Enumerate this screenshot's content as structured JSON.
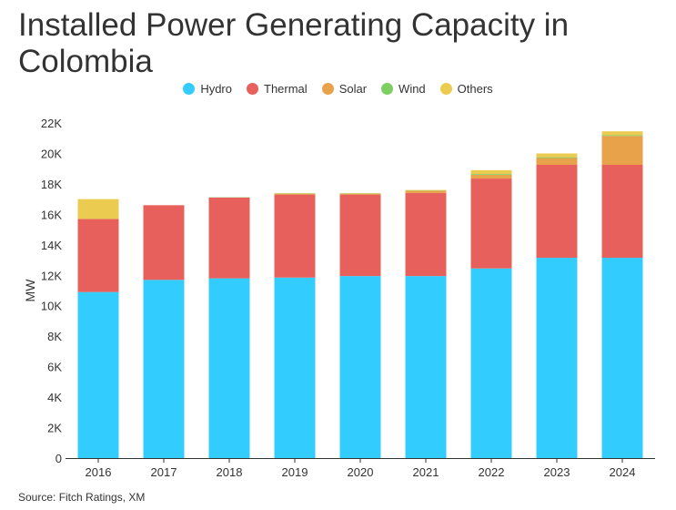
{
  "chart_data": {
    "type": "bar",
    "stacked": true,
    "title": "Installed Power Generating Capacity in Colombia",
    "xlabel": "",
    "ylabel": "MW",
    "ylim": [
      0,
      22000
    ],
    "yticks": [
      0,
      2000,
      4000,
      6000,
      8000,
      10000,
      12000,
      14000,
      16000,
      18000,
      20000,
      22000
    ],
    "ytick_labels": [
      "0",
      "2K",
      "4K",
      "6K",
      "8K",
      "10K",
      "12K",
      "14K",
      "16K",
      "18K",
      "20K",
      "22K"
    ],
    "categories": [
      "2016",
      "2017",
      "2018",
      "2019",
      "2020",
      "2021",
      "2022",
      "2023",
      "2024"
    ],
    "series": [
      {
        "name": "Hydro",
        "color": "#33ccff",
        "values": [
          10900,
          11700,
          11800,
          11850,
          11950,
          11950,
          12450,
          13150,
          13150
        ]
      },
      {
        "name": "Thermal",
        "color": "#e8605b",
        "values": [
          4800,
          4900,
          5300,
          5450,
          5350,
          5450,
          5900,
          6100,
          6100
        ]
      },
      {
        "name": "Solar",
        "color": "#e8a24a",
        "values": [
          0,
          0,
          0,
          50,
          50,
          150,
          250,
          450,
          1900
        ]
      },
      {
        "name": "Wind",
        "color": "#7ccf63",
        "values": [
          0,
          0,
          20,
          20,
          20,
          20,
          50,
          50,
          50
        ]
      },
      {
        "name": "Others",
        "color": "#ebcc50",
        "values": [
          1300,
          0,
          0,
          30,
          30,
          30,
          250,
          250,
          250
        ]
      }
    ],
    "legend_position": "top-center",
    "grid": false
  },
  "source": "Source: Fitch Ratings, XM"
}
